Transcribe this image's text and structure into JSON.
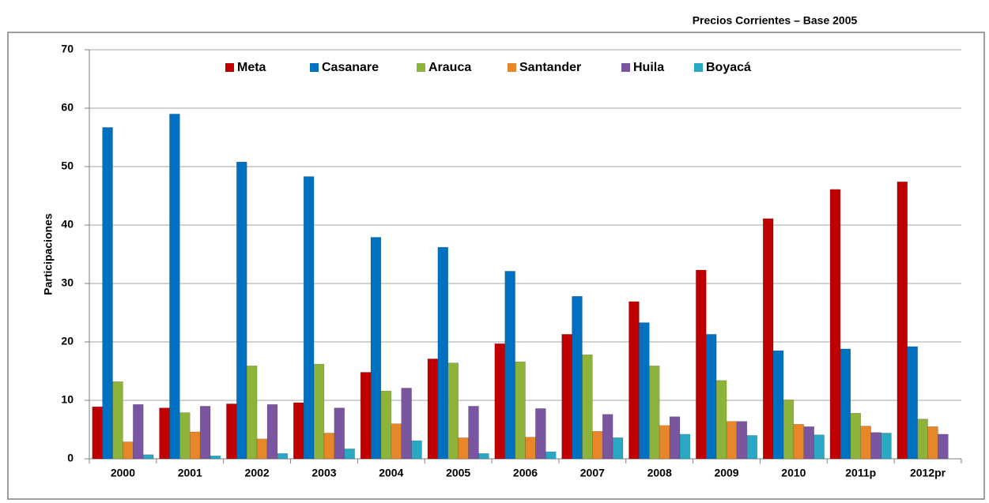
{
  "chart_data": {
    "type": "bar",
    "title": "Precios Corrientes – Base 2005",
    "y_label": "Participaciones",
    "categories": [
      "2000",
      "2001",
      "2002",
      "2003",
      "2004",
      "2005",
      "2006",
      "2007",
      "2008",
      "2009",
      "2010",
      "2011p",
      "2012pr"
    ],
    "series": [
      {
        "name": "Meta",
        "color": "#c00000",
        "values": [
          8.9,
          8.7,
          9.4,
          9.6,
          14.8,
          17.1,
          19.7,
          21.3,
          26.9,
          32.3,
          41.1,
          46.1,
          47.4
        ]
      },
      {
        "name": "Casanare",
        "color": "#0070c0",
        "values": [
          56.7,
          59.0,
          50.8,
          48.3,
          37.9,
          36.2,
          32.1,
          27.8,
          23.3,
          21.3,
          18.5,
          18.8,
          19.2
        ]
      },
      {
        "name": "Arauca",
        "color": "#8db33a",
        "values": [
          13.2,
          7.9,
          15.9,
          16.2,
          11.6,
          16.4,
          16.6,
          17.8,
          15.9,
          13.4,
          10.1,
          7.8,
          6.8
        ]
      },
      {
        "name": "Santander",
        "color": "#e8872a",
        "values": [
          2.9,
          4.6,
          3.4,
          4.4,
          6.0,
          3.6,
          3.7,
          4.7,
          5.7,
          6.4,
          5.9,
          5.6,
          5.5
        ]
      },
      {
        "name": "Huila",
        "color": "#7a56a0",
        "values": [
          9.3,
          9.0,
          9.3,
          8.7,
          12.1,
          9.0,
          8.6,
          7.6,
          7.2,
          6.4,
          5.5,
          4.5,
          4.2
        ]
      },
      {
        "name": "Boyacá",
        "color": "#2aa7c2",
        "values": [
          0.7,
          0.5,
          0.9,
          1.7,
          3.1,
          0.9,
          1.2,
          3.6,
          4.2,
          4.0,
          4.1,
          4.4,
          null
        ]
      }
    ],
    "ylim": [
      0,
      70
    ],
    "yticks": [
      0,
      10,
      20,
      30,
      40,
      50,
      60,
      70
    ],
    "grid": true,
    "legend": "top"
  }
}
